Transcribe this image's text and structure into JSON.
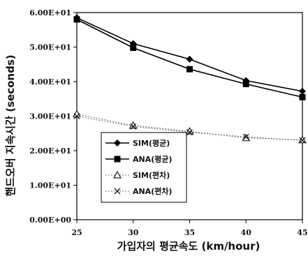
{
  "chart_data": {
    "type": "line",
    "title": "",
    "xlabel": "가입자의 평균속도 (km/hour)",
    "ylabel": "핸드오버 지속시간 (seconds)",
    "x": [
      25,
      30,
      35,
      40,
      45
    ],
    "x_ticks": [
      "25",
      "30",
      "35",
      "40",
      "45"
    ],
    "xlim": [
      25,
      45
    ],
    "ylim": [
      0,
      60
    ],
    "y_ticks": [
      {
        "value": 0,
        "label": "0.00E+00"
      },
      {
        "value": 10,
        "label": "1.00E+01"
      },
      {
        "value": 20,
        "label": "2.00E+01"
      },
      {
        "value": 30,
        "label": "3.00E+01"
      },
      {
        "value": 40,
        "label": "4.00E+01"
      },
      {
        "value": 50,
        "label": "5.00E+01"
      },
      {
        "value": 60,
        "label": "6.00E+01"
      }
    ],
    "grid": false,
    "legend_position": "lower-left",
    "series": [
      {
        "name": "SIM(평균)",
        "marker": "diamond",
        "color": "#000000",
        "values": [
          58.5,
          51.0,
          46.5,
          40.3,
          37.2
        ]
      },
      {
        "name": "ANA(평균)",
        "marker": "square",
        "color": "#000000",
        "values": [
          58.0,
          49.8,
          43.6,
          39.3,
          35.5
        ]
      },
      {
        "name": "SIM(편차)",
        "marker": "triangle",
        "color": "#777777",
        "values": [
          30.6,
          27.3,
          25.6,
          23.7,
          23.1
        ]
      },
      {
        "name": "ANA(편차)",
        "marker": "x",
        "color": "#777777",
        "values": [
          30.0,
          27.0,
          25.3,
          24.0,
          23.0
        ]
      }
    ]
  }
}
